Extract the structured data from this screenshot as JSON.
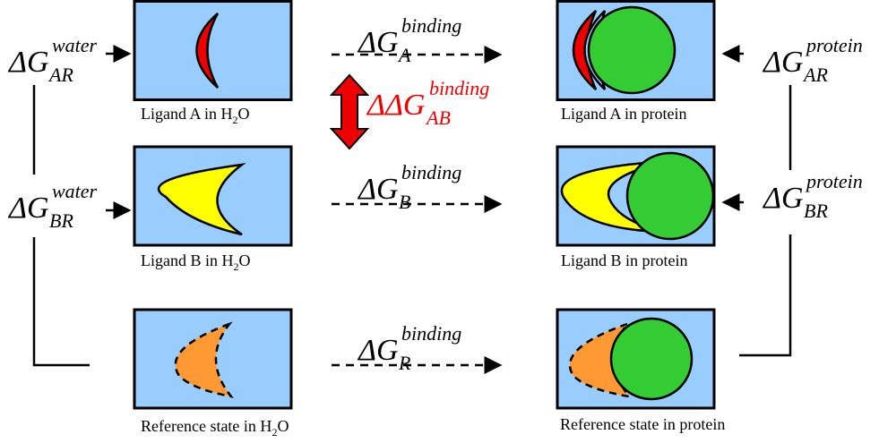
{
  "energies": [
    {
      "symbol": "ΔG",
      "sup": "water",
      "sub": "AR"
    },
    {
      "symbol": "ΔG",
      "sup": "water",
      "sub": "BR"
    },
    {
      "symbol": "ΔG",
      "sup": "protein",
      "sub": "AR"
    },
    {
      "symbol": "ΔG",
      "sup": "protein",
      "sub": "BR"
    },
    {
      "symbol": "ΔG",
      "sup": "binding",
      "sub": "A"
    },
    {
      "symbol": "ΔG",
      "sup": "binding",
      "sub": "B"
    },
    {
      "symbol": "ΔG",
      "sup": "binding",
      "sub": "R"
    },
    {
      "symbol": "ΔΔG",
      "sup": "binding",
      "sub": "AB"
    }
  ],
  "water_labels": [
    {
      "text": "Ligand A in H",
      "sub": "2",
      "after": "O"
    },
    {
      "text": "Ligand B in H",
      "sub": "2",
      "after": "O"
    },
    {
      "text": "Reference state in H",
      "sub": "2",
      "after": "O"
    }
  ],
  "protein_labels": [
    "Ligand A in protein",
    "Ligand B in protein",
    "Reference state in protein"
  ]
}
